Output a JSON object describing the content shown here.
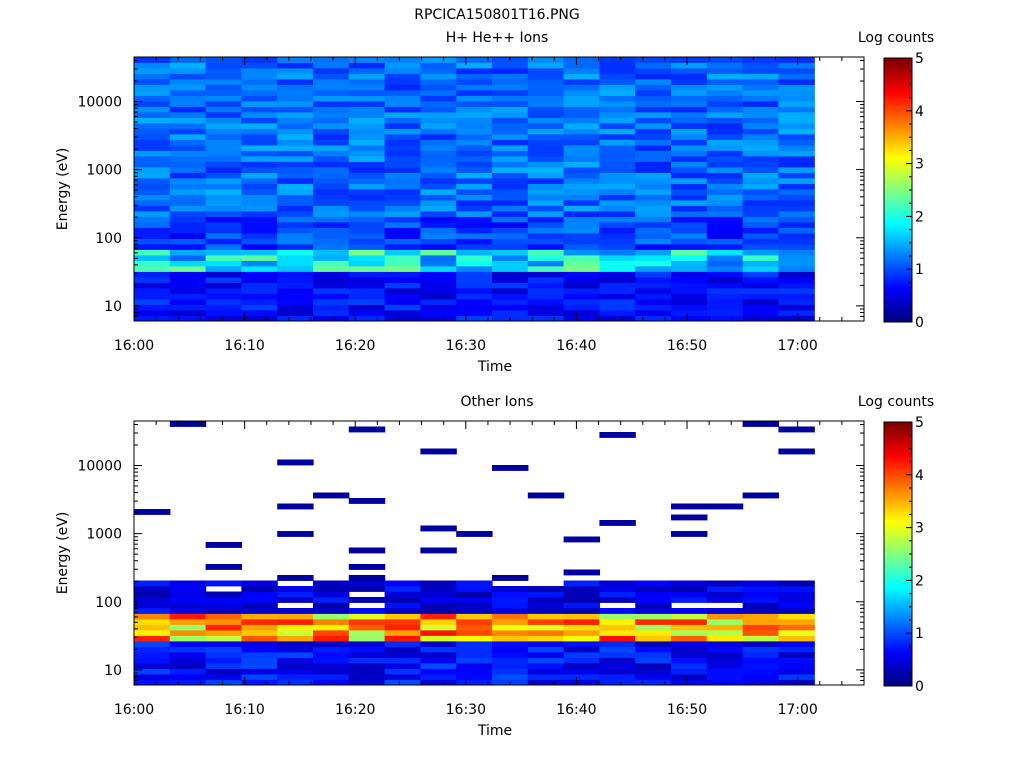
{
  "figure_title": "RPCICA150801T16.PNG",
  "chart_data": [
    {
      "type": "heatmap",
      "title": "H+ He++ Ions",
      "xlabel": "Time",
      "ylabel": "Energy (eV)",
      "x_ticks": [
        "16:00",
        "16:10",
        "16:20",
        "16:30",
        "16:40",
        "16:50",
        "17:00"
      ],
      "x_range_minutes": [
        0,
        66
      ],
      "y_scale": "log",
      "y_ticks": [
        10,
        100,
        1000,
        10000
      ],
      "y_tick_labels": [
        "10",
        "100",
        "1000",
        "10000"
      ],
      "y_range": [
        6,
        45000
      ],
      "colorbar": {
        "label": "Log counts",
        "range": [
          0,
          5
        ],
        "ticks": [
          "0",
          "1",
          "2",
          "3",
          "4",
          "5"
        ],
        "colormap": "jet"
      },
      "time_bins": 19,
      "energy_bins": 48,
      "counts_description_rows_low_to_high": {
        "6-30 eV": 0.6,
        "30-70 eV": 1.8,
        "70-200 eV": 0.9,
        "200-45000 eV": 1.1
      },
      "white_gap_after_minutes": 61.5
    },
    {
      "type": "heatmap",
      "title": "Other Ions",
      "xlabel": "Time",
      "ylabel": "Energy (eV)",
      "x_ticks": [
        "16:00",
        "16:10",
        "16:20",
        "16:30",
        "16:40",
        "16:50",
        "17:00"
      ],
      "x_range_minutes": [
        0,
        66
      ],
      "y_scale": "log",
      "y_ticks": [
        10,
        100,
        1000,
        10000
      ],
      "y_tick_labels": [
        "10",
        "100",
        "1000",
        "10000"
      ],
      "y_range": [
        6,
        45000
      ],
      "colorbar": {
        "label": "Log counts",
        "range": [
          0,
          5
        ],
        "ticks": [
          "0",
          "1",
          "2",
          "3",
          "4",
          "5"
        ],
        "colormap": "jet"
      },
      "time_bins": 19,
      "energy_bins": 48,
      "counts_description_rows_low_to_high": {
        "6-25 eV": 0.6,
        "25-70 eV": 3.5,
        "70-200 eV": 0.5,
        "200-45000 eV": "sparse single lines near 0.2"
      }
    }
  ]
}
